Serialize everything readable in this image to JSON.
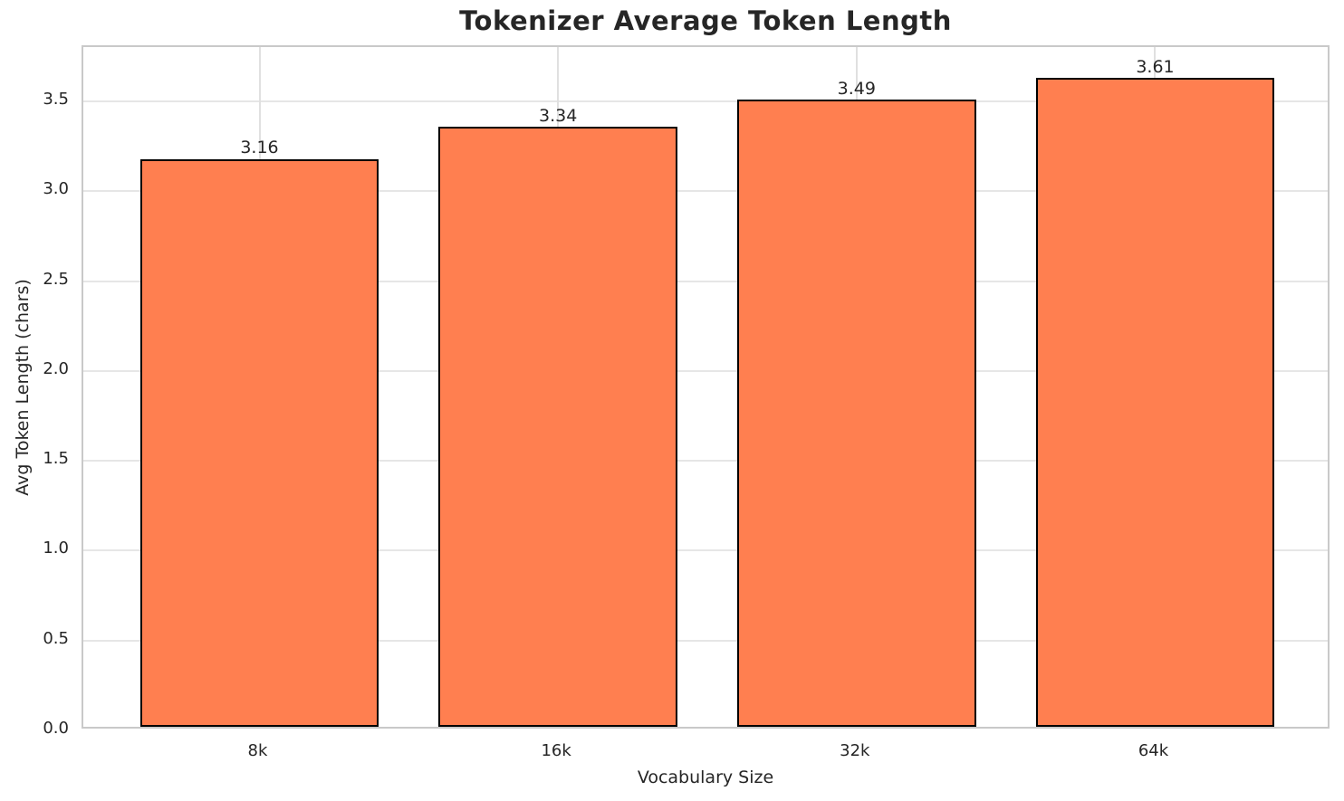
{
  "chart_data": {
    "type": "bar",
    "title": "Tokenizer Average Token Length",
    "xlabel": "Vocabulary Size",
    "ylabel": "Avg Token Length (chars)",
    "categories": [
      "8k",
      "16k",
      "32k",
      "64k"
    ],
    "values": [
      3.16,
      3.34,
      3.49,
      3.61
    ],
    "value_labels": [
      "3.16",
      "3.34",
      "3.49",
      "3.61"
    ],
    "yticks": [
      0.0,
      0.5,
      1.0,
      1.5,
      2.0,
      2.5,
      3.0,
      3.5
    ],
    "ytick_labels": [
      "0.0",
      "0.5",
      "1.0",
      "1.5",
      "2.0",
      "2.5",
      "3.0",
      "3.5"
    ],
    "ylim": [
      0,
      3.802
    ],
    "xlim": [
      -0.59,
      3.59
    ],
    "bar_width_units": 0.8,
    "grid": true,
    "legend": "none",
    "colors": {
      "bar_fill": "#FF7F50",
      "bar_edge": "#000000",
      "grid_h": "#e6e6e6",
      "grid_v": "#e0e0e0",
      "spine": "#c9c9c9",
      "text": "#262626"
    }
  }
}
